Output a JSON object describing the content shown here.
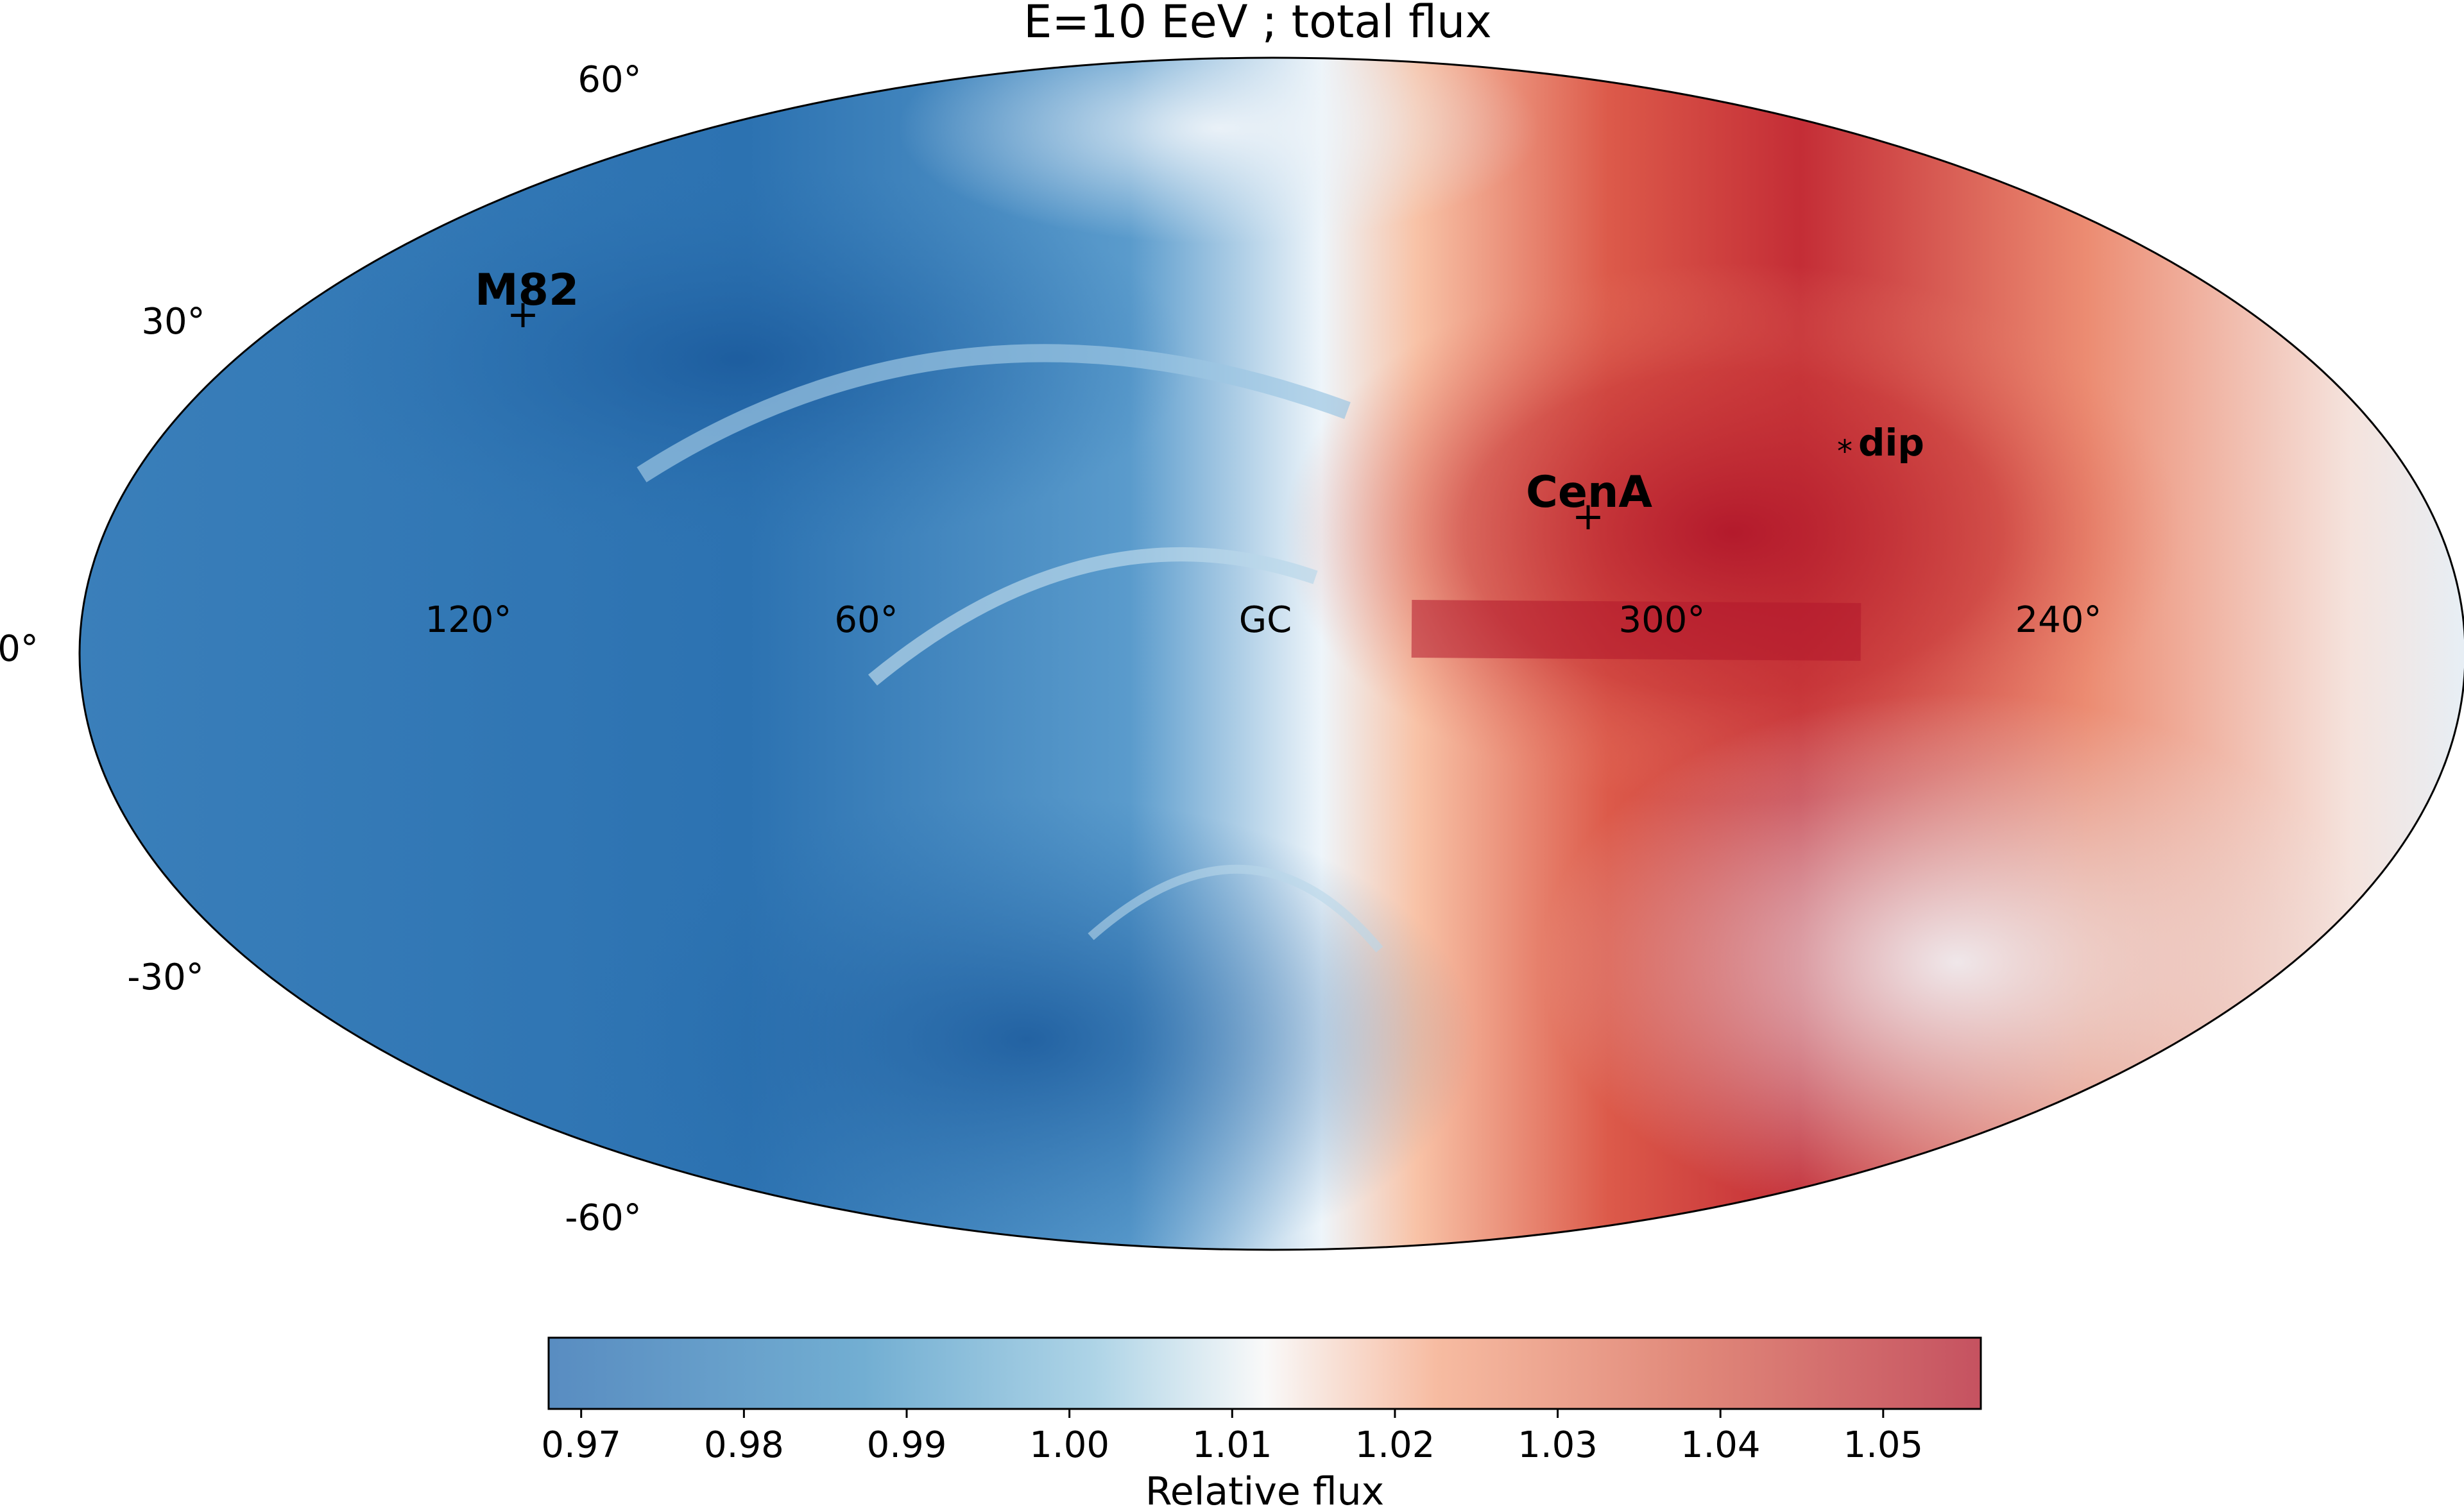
{
  "chart_data": {
    "type": "heatmap",
    "projection": "mollweide",
    "title": "E=10 EeV ; total flux",
    "colormap": "RdBu_r",
    "lat_labels": [
      "60°",
      "30°",
      "0°",
      "-30°",
      "-60°"
    ],
    "lon_labels": [
      "120°",
      "60°",
      "GC",
      "300°",
      "240°"
    ],
    "lat_values": [
      60,
      30,
      0,
      -30,
      -60
    ],
    "lon_values": [
      120,
      60,
      0,
      300,
      240
    ],
    "markers": [
      {
        "name": "M82",
        "symbol": "+",
        "lon": 141.4,
        "lat": 40.6
      },
      {
        "name": "CenA",
        "symbol": "+",
        "lon": 309.5,
        "lat": 19.4
      },
      {
        "name": "dip",
        "symbol": "*",
        "lon": 253.0,
        "lat": 28.0
      }
    ],
    "colorbar": {
      "label": "Relative flux",
      "min": 0.968,
      "max": 1.056,
      "ticks": [
        0.97,
        0.98,
        0.99,
        1.0,
        1.01,
        1.02,
        1.03,
        1.04,
        1.05
      ],
      "tick_labels": [
        "0.97",
        "0.98",
        "0.99",
        "1.00",
        "1.01",
        "1.02",
        "1.03",
        "1.04",
        "1.05"
      ]
    },
    "colors": {
      "low": "#2166ac",
      "mid": "#f7f7f7",
      "high": "#b2182b"
    }
  }
}
